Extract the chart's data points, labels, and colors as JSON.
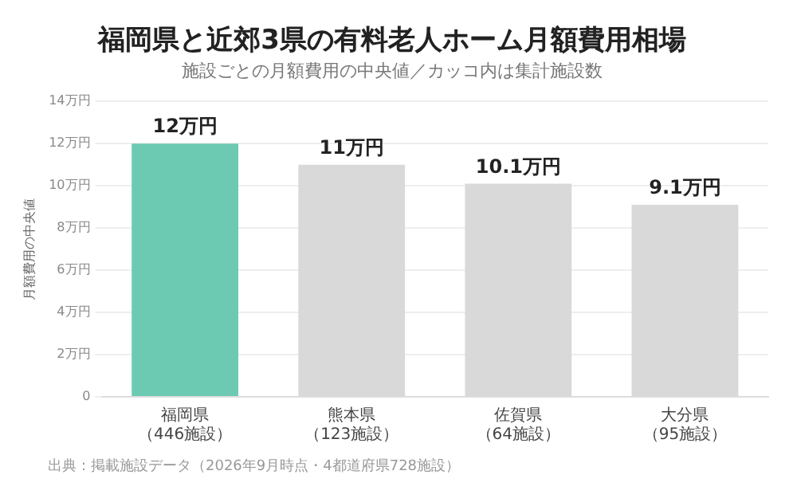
{
  "chart_data": {
    "type": "bar",
    "title": "福岡県と近郊3県の有料老人ホーム月額費用相場",
    "subtitle": "施設ごとの月額費用の中央値／カッコ内は集計施設数",
    "ylabel": "月額費用の中央値",
    "categories": [
      "福岡県（446施設）",
      "熊本県（123施設）",
      "佐賀県（64施設）",
      "大分県（95施設）"
    ],
    "values": [
      12,
      11,
      10.1,
      9.1
    ],
    "colors": [
      "#6ccab2",
      "#d9d9d9",
      "#d9d9d9",
      "#d9d9d9"
    ],
    "value_labels": [
      "12万円",
      "11万円",
      "10.1万円",
      "9.1万円"
    ],
    "ylim": [
      0,
      14
    ],
    "yticks": [
      0,
      {
        "value": 2,
        "label": "2万円"
      },
      {
        "value": 4,
        "label": "4万円"
      },
      {
        "value": 6,
        "label": "6万円"
      },
      {
        "value": 8,
        "label": "8万円"
      },
      {
        "value": 10,
        "label": "10万円"
      },
      {
        "value": 12,
        "label": "12万円"
      },
      {
        "value": 14,
        "label": "14万円"
      }
    ],
    "grid": "y",
    "legend": false,
    "annotations": [
      "出典：掲載施設データ（2026年9月時点・4都道府県728施設）"
    ]
  }
}
